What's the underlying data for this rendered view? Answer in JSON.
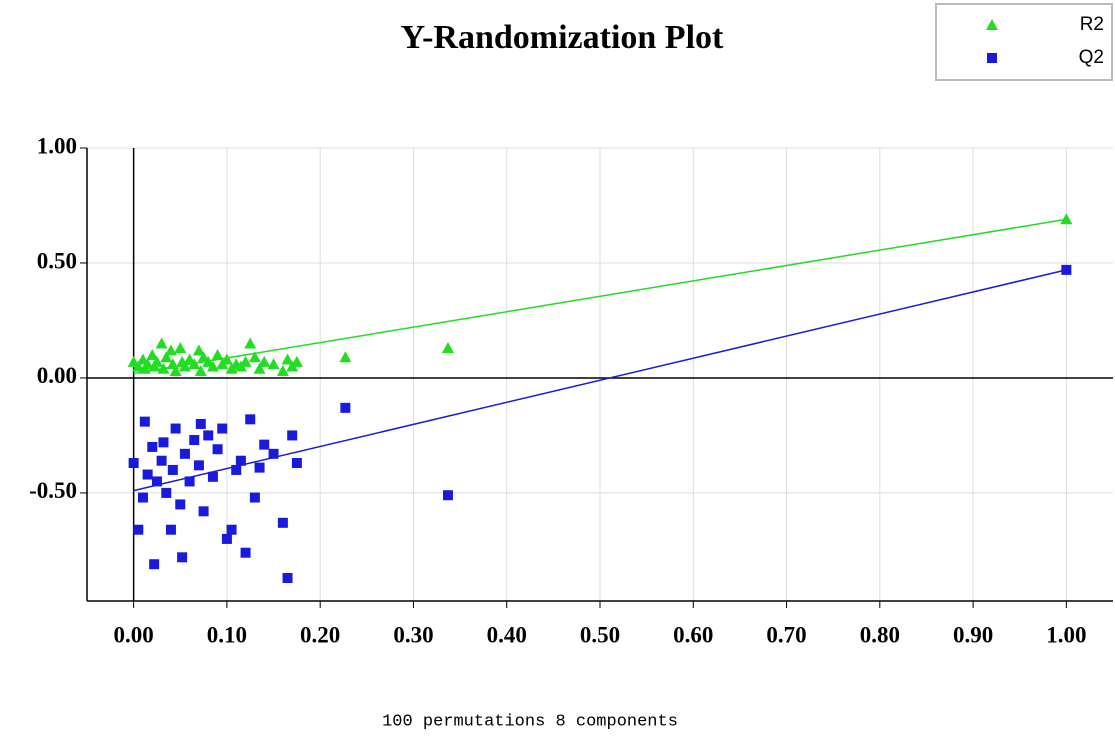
{
  "chart_data": {
    "type": "scatter",
    "title": "Y-Randomization Plot",
    "footnote": "100 permutations 8 components",
    "xlim": [
      -0.05,
      1.05
    ],
    "ylim": [
      -0.97,
      1.0
    ],
    "xticks": [
      {
        "value": 0,
        "label": "0.00"
      },
      {
        "value": 0.1,
        "label": "0.10"
      },
      {
        "value": 0.2,
        "label": "0.20"
      },
      {
        "value": 0.3,
        "label": "0.30"
      },
      {
        "value": 0.4,
        "label": "0.40"
      },
      {
        "value": 0.5,
        "label": "0.50"
      },
      {
        "value": 0.6,
        "label": "0.60"
      },
      {
        "value": 0.7,
        "label": "0.70"
      },
      {
        "value": 0.8,
        "label": "0.80"
      },
      {
        "value": 0.9,
        "label": "0.90"
      },
      {
        "value": 1,
        "label": "1.00"
      }
    ],
    "yticks": [
      {
        "value": -0.5,
        "label": "-0.50"
      },
      {
        "value": 0,
        "label": "0.00"
      },
      {
        "value": 0.5,
        "label": "0.50"
      },
      {
        "value": 1,
        "label": "1.00"
      }
    ],
    "grid": true,
    "legend": "top-right",
    "series": [
      {
        "name": "R2",
        "color": "#22dd22",
        "marker": "triangle",
        "x": [
          0.0,
          0.005,
          0.01,
          0.012,
          0.015,
          0.02,
          0.022,
          0.025,
          0.03,
          0.032,
          0.035,
          0.04,
          0.042,
          0.045,
          0.05,
          0.052,
          0.055,
          0.06,
          0.065,
          0.07,
          0.072,
          0.075,
          0.08,
          0.085,
          0.09,
          0.095,
          0.1,
          0.105,
          0.11,
          0.115,
          0.12,
          0.125,
          0.13,
          0.135,
          0.14,
          0.15,
          0.16,
          0.165,
          0.17,
          0.175,
          0.227,
          0.337,
          1.0
        ],
        "values": [
          0.07,
          0.05,
          0.08,
          0.04,
          0.06,
          0.1,
          0.05,
          0.07,
          0.15,
          0.04,
          0.09,
          0.12,
          0.06,
          0.03,
          0.13,
          0.07,
          0.05,
          0.08,
          0.06,
          0.12,
          0.03,
          0.09,
          0.07,
          0.05,
          0.1,
          0.06,
          0.08,
          0.04,
          0.06,
          0.05,
          0.07,
          0.15,
          0.09,
          0.04,
          0.07,
          0.06,
          0.03,
          0.08,
          0.05,
          0.07,
          0.09,
          0.13,
          0.69
        ],
        "fit": {
          "x": [
            0,
            1
          ],
          "values": [
            0.02,
            0.69
          ]
        }
      },
      {
        "name": "Q2",
        "color": "#1a1adc",
        "marker": "square",
        "x": [
          0.0,
          0.005,
          0.01,
          0.012,
          0.015,
          0.02,
          0.022,
          0.025,
          0.03,
          0.032,
          0.035,
          0.04,
          0.042,
          0.045,
          0.05,
          0.052,
          0.055,
          0.06,
          0.065,
          0.07,
          0.072,
          0.075,
          0.08,
          0.085,
          0.09,
          0.095,
          0.1,
          0.105,
          0.11,
          0.115,
          0.12,
          0.125,
          0.13,
          0.135,
          0.14,
          0.15,
          0.16,
          0.165,
          0.17,
          0.175,
          0.227,
          0.337,
          1.0
        ],
        "values": [
          -0.37,
          -0.66,
          -0.52,
          -0.19,
          -0.42,
          -0.3,
          -0.81,
          -0.45,
          -0.36,
          -0.28,
          -0.5,
          -0.66,
          -0.4,
          -0.22,
          -0.55,
          -0.78,
          -0.33,
          -0.45,
          -0.27,
          -0.38,
          -0.2,
          -0.58,
          -0.25,
          -0.43,
          -0.31,
          -0.22,
          -0.7,
          -0.66,
          -0.4,
          -0.36,
          -0.76,
          -0.18,
          -0.52,
          -0.39,
          -0.29,
          -0.33,
          -0.63,
          -0.87,
          -0.25,
          -0.37,
          -0.13,
          -0.51,
          0.47
        ],
        "fit": {
          "x": [
            0,
            1
          ],
          "values": [
            -0.49,
            0.47
          ]
        }
      }
    ]
  }
}
